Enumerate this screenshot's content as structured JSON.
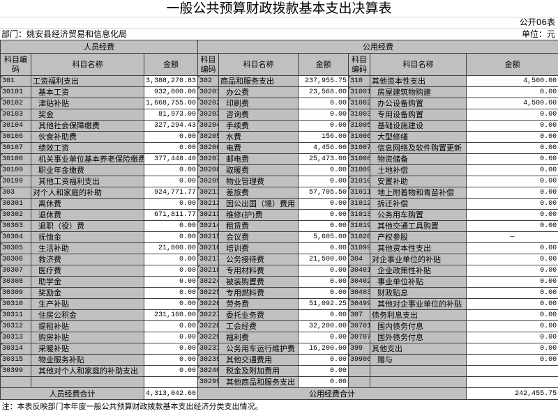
{
  "title": "一般公共预算财政拨款基本支出决算表",
  "sheet_id": "公开06表",
  "department": "部门：姚安县经济贸易和信息化局",
  "unit": "单位：元",
  "sections": {
    "personnel": "人员经费",
    "public": "公用经费"
  },
  "columns": {
    "code": "科目编码",
    "name": "科目名称",
    "amount": "金额"
  },
  "rows": [
    {
      "l": [
        "301",
        "工资福利支出",
        "3,388,270.83"
      ],
      "m": [
        "302",
        "商品和服务支出",
        "237,955.75"
      ],
      "r": [
        "310",
        "其他资本性支出",
        "4,500.00"
      ]
    },
    {
      "l": [
        "30101",
        "基本工资",
        "932,800.00"
      ],
      "m": [
        "30201",
        "办公费",
        "23,568.00"
      ],
      "r": [
        "31001",
        "房屋建筑物购建",
        "0.00"
      ]
    },
    {
      "l": [
        "30102",
        "津贴补贴",
        "1,668,755.00"
      ],
      "m": [
        "30202",
        "印刷费",
        "0.00"
      ],
      "r": [
        "31002",
        "办公设备购置",
        "4,500.00"
      ]
    },
    {
      "l": [
        "30103",
        "奖金",
        "81,973.00"
      ],
      "m": [
        "30203",
        "咨询费",
        "0.00"
      ],
      "r": [
        "31003",
        "专用设备购置",
        "0.00"
      ]
    },
    {
      "l": [
        "30104",
        "其他社会保障缴费",
        "327,294.43"
      ],
      "m": [
        "30204",
        "手续费",
        "0.00"
      ],
      "r": [
        "31005",
        "基础设施建设",
        "0.00"
      ]
    },
    {
      "l": [
        "30106",
        "伙食补助费",
        "0.00"
      ],
      "m": [
        "30205",
        "水费",
        "156.00"
      ],
      "r": [
        "31006",
        "大型修缮",
        "0.00"
      ]
    },
    {
      "l": [
        "30107",
        "绩效工资",
        "0.00"
      ],
      "m": [
        "30206",
        "电费",
        "4,456.00"
      ],
      "r": [
        "31007",
        "信息网络及软件购置更新",
        "0.00"
      ]
    },
    {
      "l": [
        "30108",
        "机关事业单位基本养老保险缴费",
        "377,448.40"
      ],
      "m": [
        "30207",
        "邮电费",
        "25,473.00"
      ],
      "r": [
        "31008",
        "物资储备",
        "0.00"
      ]
    },
    {
      "l": [
        "30109",
        "职业年金缴费",
        "0.00"
      ],
      "m": [
        "30208",
        "取暖费",
        "0.00"
      ],
      "r": [
        "31009",
        "土地补偿",
        "0.00"
      ]
    },
    {
      "l": [
        "30199",
        "其他工资福利支出",
        "0.00"
      ],
      "m": [
        "30209",
        "物业管理费",
        "0.00"
      ],
      "r": [
        "31010",
        "安置补助",
        "0.00"
      ]
    },
    {
      "l": [
        "303",
        "对个人和家庭的补助",
        "924,771.77"
      ],
      "m": [
        "30211",
        "差旅费",
        "57,705.50"
      ],
      "r": [
        "31011",
        "地上附着物和青苗补偿",
        "0.00"
      ]
    },
    {
      "l": [
        "30301",
        "离休费",
        "0.00"
      ],
      "m": [
        "30212",
        "因公出国（境）费用",
        "0.00"
      ],
      "r": [
        "31012",
        "拆迁补偿",
        "0.00"
      ]
    },
    {
      "l": [
        "30302",
        "退休费",
        "671,811.77"
      ],
      "m": [
        "30213",
        "维修(护)费",
        "0.00"
      ],
      "r": [
        "31013",
        "公务用车购置",
        "0.00"
      ]
    },
    {
      "l": [
        "30303",
        "退职（役）费",
        "0.00"
      ],
      "m": [
        "30214",
        "租赁费",
        "0.00"
      ],
      "r": [
        "31019",
        "其他交通工具购置",
        "0.00"
      ]
    },
    {
      "l": [
        "30304",
        "抚恤金",
        "0.00"
      ],
      "m": [
        "30215",
        "会议费",
        "5,605.00"
      ],
      "r": [
        "31020",
        "产权参股",
        "—"
      ]
    },
    {
      "l": [
        "30305",
        "生活补助",
        "21,800.00"
      ],
      "m": [
        "30216",
        "培训费",
        "0.00"
      ],
      "r": [
        "31099",
        "其他资本性支出",
        "0.00"
      ]
    },
    {
      "l": [
        "30306",
        "救济费",
        "0.00"
      ],
      "m": [
        "30217",
        "公务接待费",
        "21,500.00"
      ],
      "r": [
        "304",
        "对企事业单位的补贴",
        "0.00"
      ]
    },
    {
      "l": [
        "30307",
        "医疗费",
        "0.00"
      ],
      "m": [
        "30218",
        "专用材料费",
        "0.00"
      ],
      "r": [
        "30401",
        "企业政策性补贴",
        "0.00"
      ]
    },
    {
      "l": [
        "30308",
        "助学金",
        "0.00"
      ],
      "m": [
        "30224",
        "被装购置费",
        "0.00"
      ],
      "r": [
        "30402",
        "事业单位补贴",
        "0.00"
      ]
    },
    {
      "l": [
        "30309",
        "奖励金",
        "0.00"
      ],
      "m": [
        "30225",
        "专用燃料费",
        "0.00"
      ],
      "r": [
        "30403",
        "财政贴息",
        "0.00"
      ]
    },
    {
      "l": [
        "30310",
        "生产补贴",
        "0.00"
      ],
      "m": [
        "30226",
        "劳务费",
        "51,092.25"
      ],
      "r": [
        "30499",
        "其他对企事业单位的补贴",
        "0.00"
      ]
    },
    {
      "l": [
        "30311",
        "住房公积金",
        "231,160.00"
      ],
      "m": [
        "30227",
        "委托业务费",
        "0.00"
      ],
      "r": [
        "307",
        "债务利息支出",
        "0.00"
      ]
    },
    {
      "l": [
        "30312",
        "提租补贴",
        "0.00"
      ],
      "m": [
        "30228",
        "工会经费",
        "32,200.00"
      ],
      "r": [
        "30701",
        "国内债务付息",
        "0.00"
      ]
    },
    {
      "l": [
        "30313",
        "购房补贴",
        "0.00"
      ],
      "m": [
        "30229",
        "福利费",
        "0.00"
      ],
      "r": [
        "30707",
        "国外债务付息",
        "0.00"
      ]
    },
    {
      "l": [
        "30314",
        "采暖补贴",
        "0.00"
      ],
      "m": [
        "30231",
        "公务用车运行维护费",
        "16,200.00"
      ],
      "r": [
        "399",
        "其他支出",
        "0.00"
      ]
    },
    {
      "l": [
        "30315",
        "物业服务补贴",
        "0.00"
      ],
      "m": [
        "30239",
        "其他交通费用",
        "0.00"
      ],
      "r": [
        "39906",
        "赠与",
        "0.00"
      ]
    },
    {
      "l": [
        "30399",
        "其他对个人和家庭的补助支出",
        "0.00"
      ],
      "m": [
        "30240",
        "税金及附加费用",
        "0.00"
      ],
      "r": [
        "",
        "",
        ""
      ]
    },
    {
      "l": [
        "",
        "",
        ""
      ],
      "m": [
        "30299",
        "其他商品和服务支出",
        "0.00"
      ],
      "r": [
        "",
        "",
        ""
      ]
    }
  ],
  "totals": {
    "personnel_label": "人员经费合计",
    "personnel_amount": "4,313,042.60",
    "public_label": "公用经费合计",
    "public_amount": "242,455.75"
  },
  "note": "注：本表反映部门本年度一般公共预算财政拨款基本支出经济分类支出情况。",
  "colors": {
    "header_gray": "#c0c0c0",
    "corner_marker": "#1a8a1a"
  }
}
